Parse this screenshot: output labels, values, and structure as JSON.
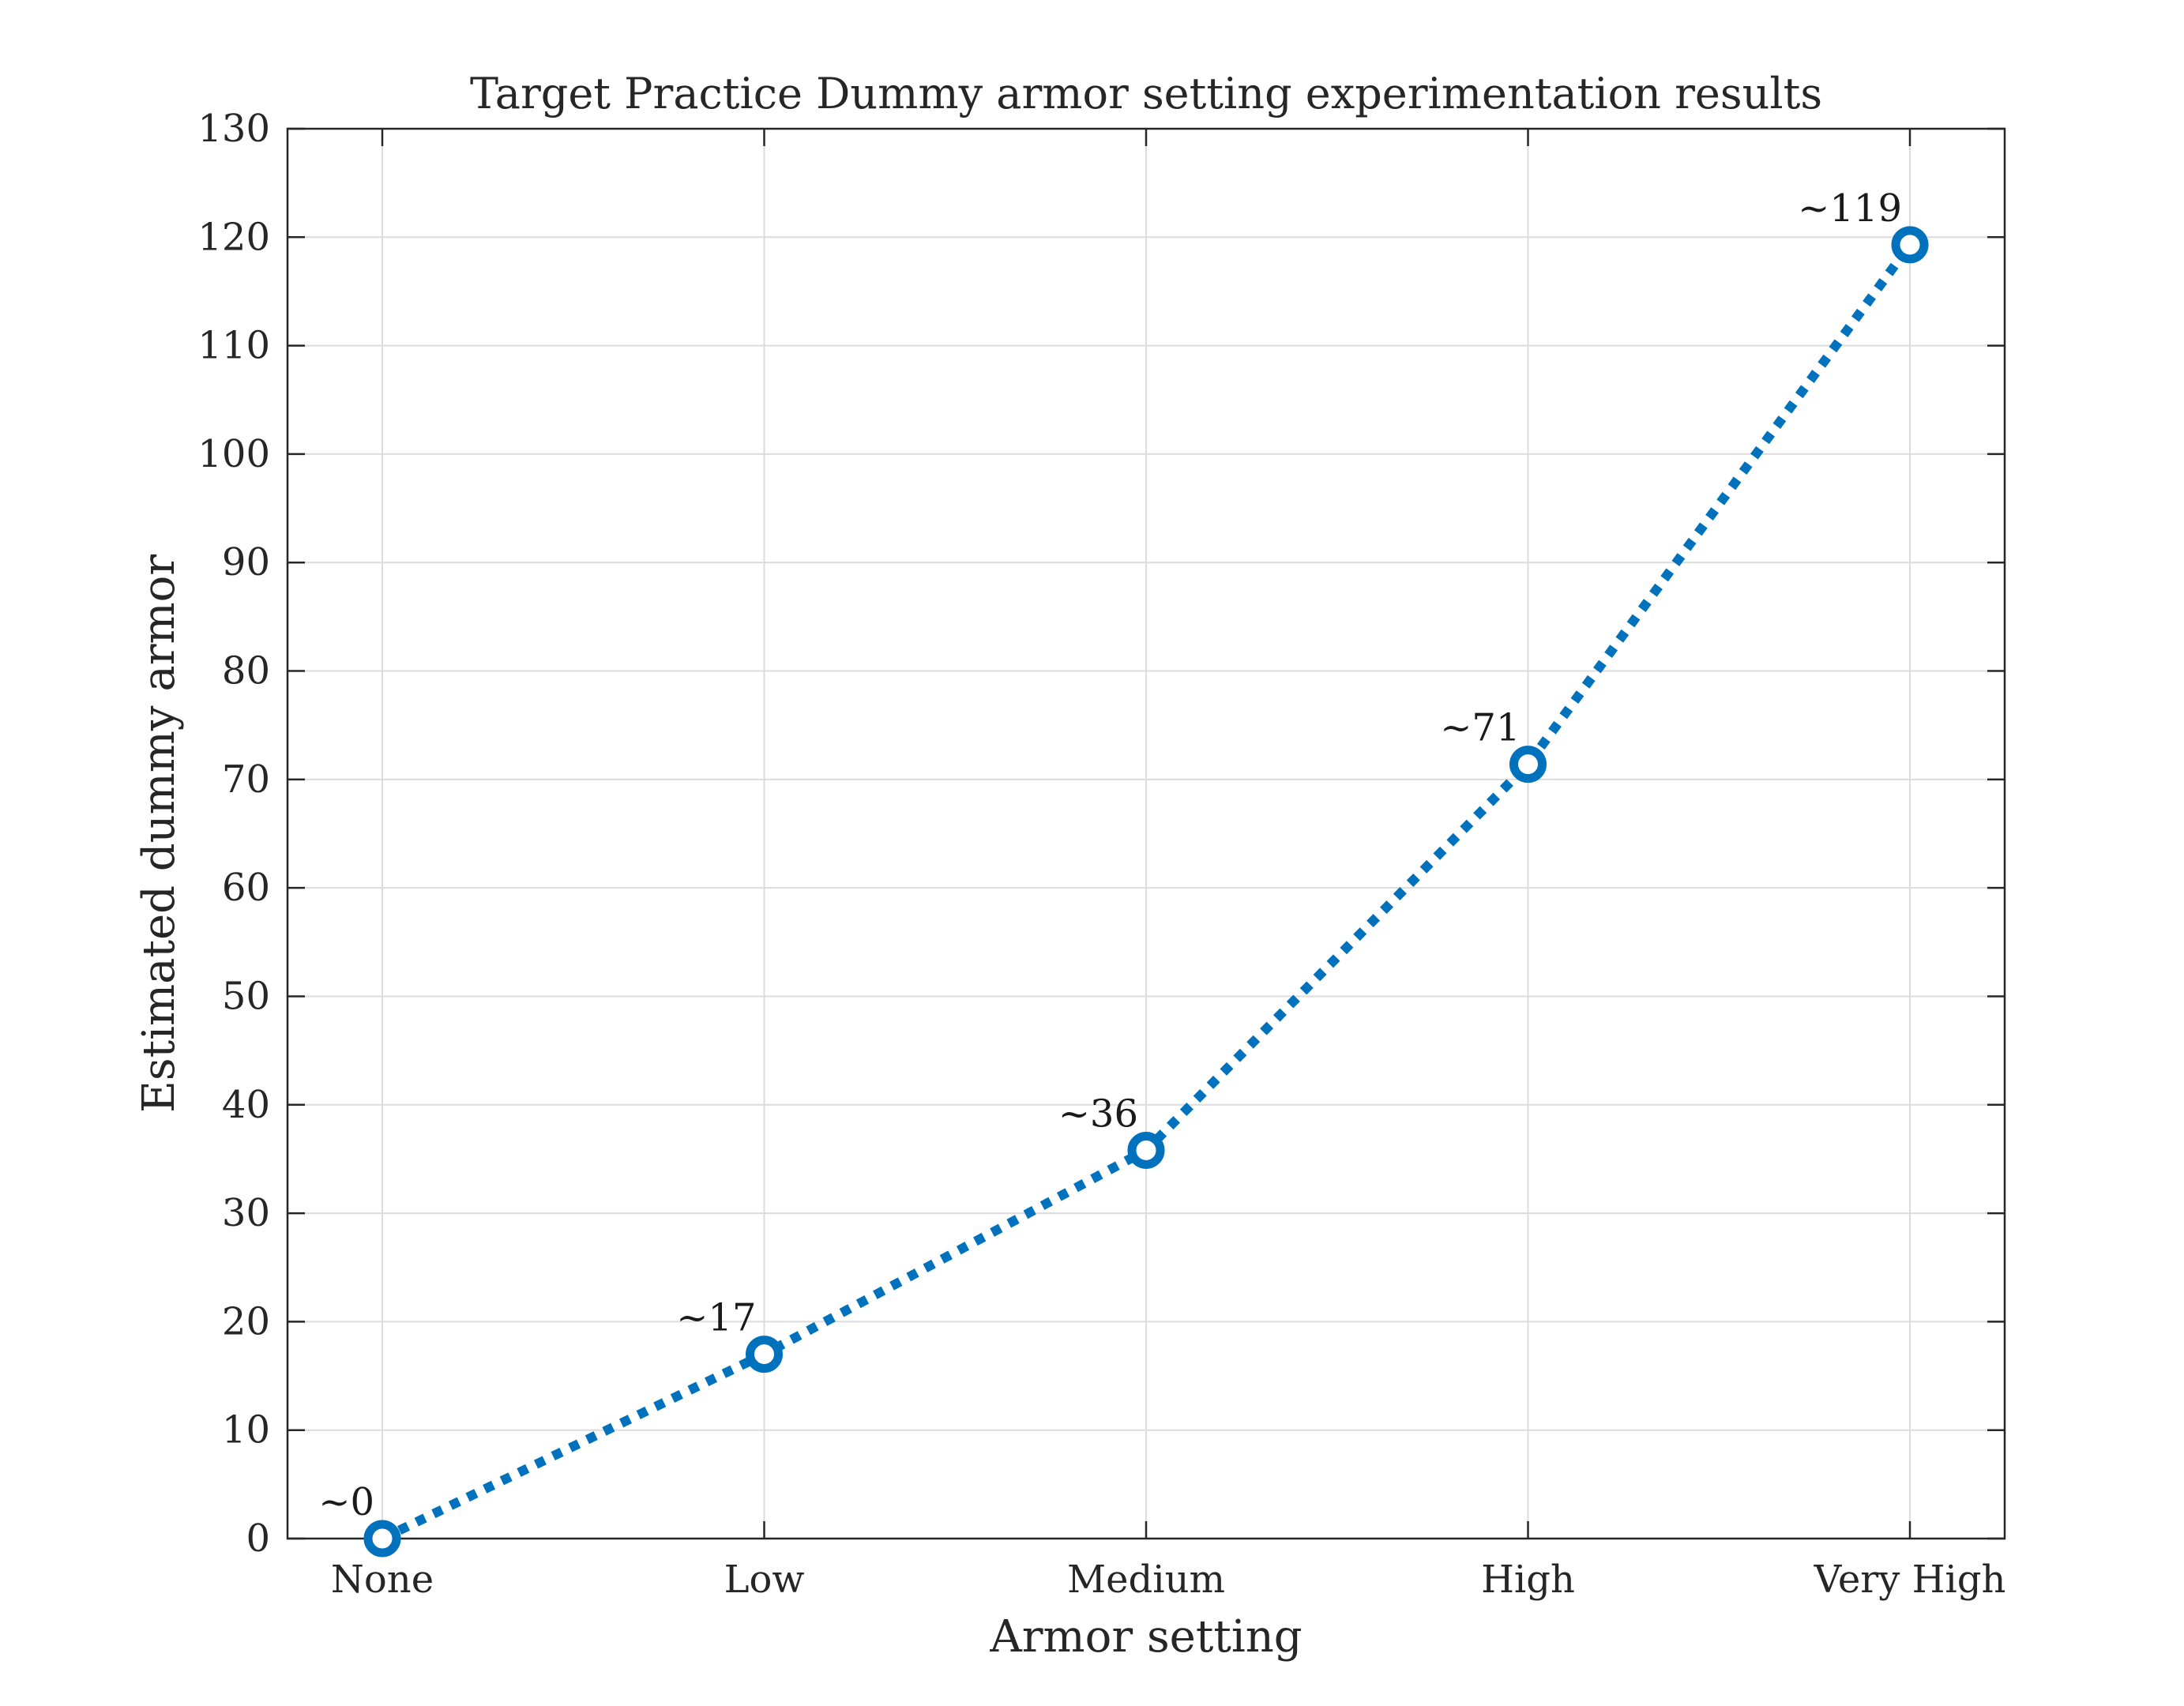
{
  "chart_data": {
    "type": "line",
    "title": "Target Practice Dummy armor setting experimentation results",
    "xlabel": "Armor setting",
    "ylabel": "Estimated dummy armor",
    "categories": [
      "None",
      "Low",
      "Medium",
      "High",
      "Very High"
    ],
    "series": [
      {
        "values": [
          0,
          17,
          35.8,
          71.4,
          119.3
        ],
        "labels": [
          "~0",
          "~17",
          "~36",
          "~71",
          "~119"
        ]
      }
    ],
    "ylim": [
      0,
      130
    ],
    "yticks": [
      0,
      10,
      20,
      30,
      40,
      50,
      60,
      70,
      80,
      90,
      100,
      110,
      120,
      130
    ],
    "grid": true,
    "line_style": "dotted",
    "marker": "circle",
    "colors": {
      "series": "#0072BD",
      "axis": "#262626",
      "grid": "#dcdcdc"
    }
  }
}
